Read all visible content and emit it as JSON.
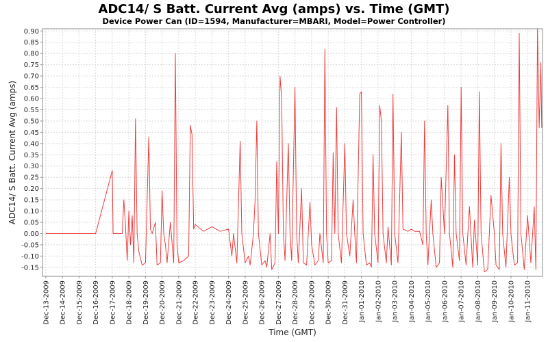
{
  "chart_data": {
    "type": "line",
    "title": "ADC14/ S Batt. Current Avg (amps) vs. Time (GMT)",
    "subtitle": "Device Power Can (ID=1594, Manufacturer=MBARI, Model=Power Controller)",
    "xlabel": "Time (GMT)",
    "ylabel": "ADC14/ S Batt. Current Avg (amps)",
    "ylim": [
      -0.19,
      0.91
    ],
    "yticks": [
      -0.15,
      -0.1,
      -0.05,
      0.0,
      0.05,
      0.1,
      0.15,
      0.2,
      0.25,
      0.3,
      0.35,
      0.4,
      0.45,
      0.5,
      0.55,
      0.6,
      0.65,
      0.7,
      0.75,
      0.8,
      0.85,
      0.9
    ],
    "xlim_days": [
      -0.2,
      29.9
    ],
    "x_categories": [
      "Dec-13-2009",
      "Dec-14-2009",
      "Dec-15-2009",
      "Dec-16-2009",
      "Dec-17-2009",
      "Dec-18-2009",
      "Dec-19-2009",
      "Dec-20-2009",
      "Dec-21-2009",
      "Dec-22-2009",
      "Dec-23-2009",
      "Dec-24-2009",
      "Dec-25-2009",
      "Dec-26-2009",
      "Dec-27-2009",
      "Dec-28-2009",
      "Dec-29-2009",
      "Dec-30-2009",
      "Dec-31-2009",
      "Jan-01-2010",
      "Jan-02-2010",
      "Jan-03-2010",
      "Jan-04-2010",
      "Jan-05-2010",
      "Jan-06-2010",
      "Jan-07-2010",
      "Jan-08-2010",
      "Jan-09-2010",
      "Jan-10-2010",
      "Jan-11-2010"
    ],
    "grid": true,
    "series": [
      {
        "name": "",
        "color": "#ee3b3b",
        "points": [
          [
            0.0,
            0.0
          ],
          [
            3.0,
            0.0
          ],
          [
            4.0,
            0.28
          ],
          [
            4.05,
            0.0
          ],
          [
            4.6,
            0.0
          ],
          [
            4.7,
            0.15
          ],
          [
            4.8,
            0.03
          ],
          [
            4.9,
            -0.12
          ],
          [
            5.0,
            0.1
          ],
          [
            5.1,
            -0.05
          ],
          [
            5.2,
            0.08
          ],
          [
            5.3,
            -0.13
          ],
          [
            5.4,
            0.51
          ],
          [
            5.5,
            0.0
          ],
          [
            5.6,
            -0.08
          ],
          [
            5.8,
            -0.14
          ],
          [
            6.0,
            -0.13
          ],
          [
            6.2,
            0.43
          ],
          [
            6.3,
            0.02
          ],
          [
            6.4,
            0.0
          ],
          [
            6.6,
            0.05
          ],
          [
            6.7,
            -0.14
          ],
          [
            6.9,
            -0.13
          ],
          [
            7.0,
            0.19
          ],
          [
            7.1,
            0.0
          ],
          [
            7.2,
            -0.05
          ],
          [
            7.3,
            -0.13
          ],
          [
            7.5,
            0.05
          ],
          [
            7.7,
            -0.13
          ],
          [
            7.8,
            0.8
          ],
          [
            7.9,
            -0.05
          ],
          [
            8.0,
            -0.13
          ],
          [
            8.3,
            -0.12
          ],
          [
            8.6,
            -0.1
          ],
          [
            8.7,
            0.48
          ],
          [
            8.8,
            0.44
          ],
          [
            8.9,
            0.02
          ],
          [
            9.0,
            0.04
          ],
          [
            9.5,
            0.01
          ],
          [
            10.0,
            0.03
          ],
          [
            10.5,
            0.01
          ],
          [
            11.0,
            0.02
          ],
          [
            11.2,
            -0.1
          ],
          [
            11.3,
            0.0
          ],
          [
            11.5,
            -0.13
          ],
          [
            11.7,
            0.41
          ],
          [
            11.8,
            0.0
          ],
          [
            12.0,
            -0.13
          ],
          [
            12.2,
            -0.1
          ],
          [
            12.3,
            -0.14
          ],
          [
            12.5,
            0.0
          ],
          [
            12.6,
            0.15
          ],
          [
            12.7,
            0.5
          ],
          [
            12.8,
            0.0
          ],
          [
            13.0,
            -0.14
          ],
          [
            13.2,
            -0.12
          ],
          [
            13.3,
            -0.15
          ],
          [
            13.5,
            0.0
          ],
          [
            13.6,
            -0.16
          ],
          [
            13.8,
            -0.13
          ],
          [
            13.9,
            0.32
          ],
          [
            14.0,
            0.0
          ],
          [
            14.1,
            0.7
          ],
          [
            14.2,
            0.6
          ],
          [
            14.3,
            0.0
          ],
          [
            14.4,
            -0.12
          ],
          [
            14.6,
            0.4
          ],
          [
            14.7,
            0.0
          ],
          [
            14.8,
            -0.12
          ],
          [
            15.0,
            0.65
          ],
          [
            15.1,
            0.0
          ],
          [
            15.2,
            -0.13
          ],
          [
            15.4,
            0.2
          ],
          [
            15.5,
            -0.13
          ],
          [
            15.7,
            -0.14
          ],
          [
            15.9,
            0.14
          ],
          [
            16.0,
            -0.05
          ],
          [
            16.2,
            -0.14
          ],
          [
            16.4,
            -0.12
          ],
          [
            16.5,
            0.0
          ],
          [
            16.7,
            -0.13
          ],
          [
            16.8,
            0.82
          ],
          [
            16.9,
            0.0
          ],
          [
            17.0,
            -0.13
          ],
          [
            17.2,
            -0.12
          ],
          [
            17.3,
            0.36
          ],
          [
            17.4,
            0.0
          ],
          [
            17.5,
            0.56
          ],
          [
            17.6,
            0.0
          ],
          [
            17.8,
            -0.13
          ],
          [
            18.0,
            0.4
          ],
          [
            18.1,
            0.0
          ],
          [
            18.3,
            -0.1
          ],
          [
            18.5,
            0.15
          ],
          [
            18.6,
            0.0
          ],
          [
            18.7,
            -0.13
          ],
          [
            18.9,
            0.62
          ],
          [
            19.0,
            0.63
          ],
          [
            19.1,
            0.0
          ],
          [
            19.3,
            -0.14
          ],
          [
            19.5,
            -0.13
          ],
          [
            19.6,
            -0.15
          ],
          [
            19.7,
            0.35
          ],
          [
            19.8,
            0.0
          ],
          [
            20.0,
            -0.13
          ],
          [
            20.1,
            0.57
          ],
          [
            20.2,
            0.5
          ],
          [
            20.3,
            0.0
          ],
          [
            20.5,
            -0.13
          ],
          [
            20.6,
            0.03
          ],
          [
            20.8,
            -0.14
          ],
          [
            20.9,
            0.62
          ],
          [
            21.0,
            0.0
          ],
          [
            21.2,
            -0.13
          ],
          [
            21.4,
            0.45
          ],
          [
            21.5,
            0.02
          ],
          [
            21.8,
            0.01
          ],
          [
            22.0,
            0.02
          ],
          [
            22.2,
            0.01
          ],
          [
            22.5,
            0.01
          ],
          [
            22.7,
            -0.05
          ],
          [
            22.8,
            0.5
          ],
          [
            22.9,
            0.0
          ],
          [
            23.0,
            -0.14
          ],
          [
            23.2,
            0.15
          ],
          [
            23.3,
            0.0
          ],
          [
            23.5,
            -0.15
          ],
          [
            23.7,
            -0.13
          ],
          [
            23.8,
            0.25
          ],
          [
            24.0,
            0.0
          ],
          [
            24.2,
            0.57
          ],
          [
            24.3,
            0.0
          ],
          [
            24.5,
            -0.15
          ],
          [
            24.6,
            0.35
          ],
          [
            24.7,
            0.0
          ],
          [
            24.9,
            -0.12
          ],
          [
            25.0,
            0.65
          ],
          [
            25.1,
            0.0
          ],
          [
            25.3,
            -0.14
          ],
          [
            25.5,
            0.12
          ],
          [
            25.7,
            -0.15
          ],
          [
            25.8,
            0.06
          ],
          [
            26.0,
            -0.14
          ],
          [
            26.1,
            0.63
          ],
          [
            26.2,
            0.0
          ],
          [
            26.4,
            -0.17
          ],
          [
            26.6,
            -0.16
          ],
          [
            26.8,
            0.17
          ],
          [
            27.0,
            0.0
          ],
          [
            27.1,
            -0.14
          ],
          [
            27.3,
            -0.16
          ],
          [
            27.4,
            0.4
          ],
          [
            27.5,
            0.0
          ],
          [
            27.7,
            -0.15
          ],
          [
            27.9,
            0.25
          ],
          [
            28.0,
            0.0
          ],
          [
            28.2,
            -0.14
          ],
          [
            28.4,
            -0.13
          ],
          [
            28.5,
            0.89
          ],
          [
            28.6,
            0.0
          ],
          [
            28.8,
            -0.16
          ],
          [
            29.0,
            0.08
          ],
          [
            29.2,
            -0.13
          ],
          [
            29.4,
            0.12
          ],
          [
            29.5,
            -0.16
          ],
          [
            29.6,
            0.91
          ],
          [
            29.7,
            0.47
          ],
          [
            29.8,
            0.76
          ],
          [
            29.85,
            0.47
          ]
        ]
      }
    ]
  }
}
